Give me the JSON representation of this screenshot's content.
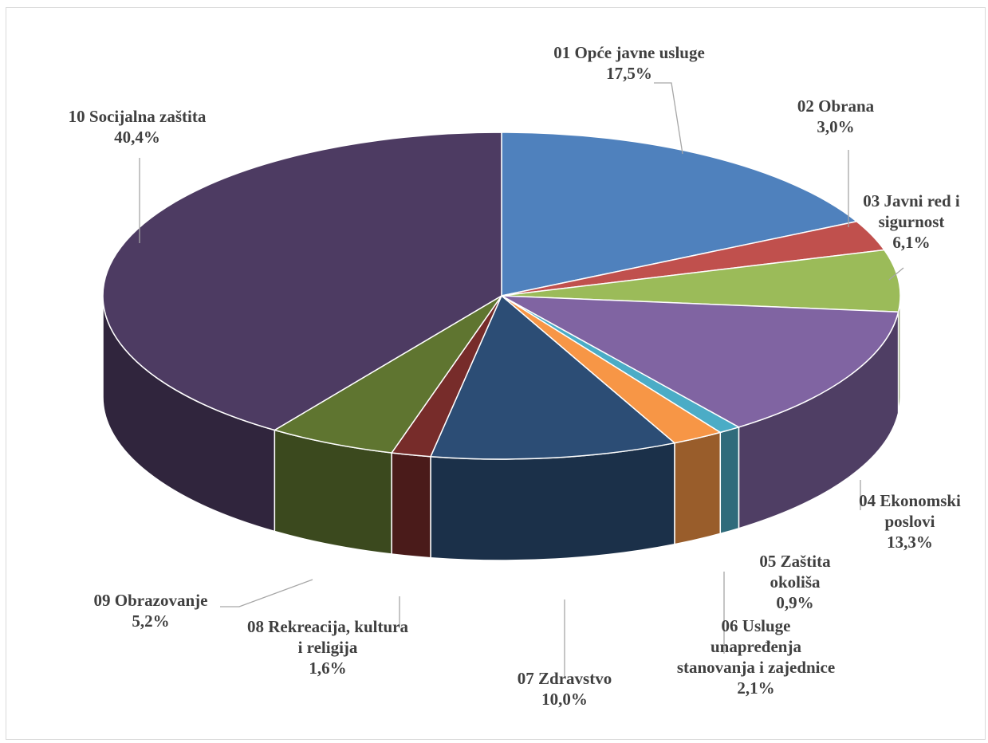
{
  "chart_data": {
    "type": "pie",
    "title": "",
    "legend": "none",
    "labels_on_chart": true,
    "slices": [
      {
        "name_lines": [
          "01 Opće javne usluge"
        ],
        "label": "17,5%",
        "value": 17.5,
        "color": "#4f81bd"
      },
      {
        "name_lines": [
          "02 Obrana"
        ],
        "label": "3,0%",
        "value": 3.0,
        "color": "#c0504d"
      },
      {
        "name_lines": [
          "03 Javni red i",
          "sigurnost"
        ],
        "label": "6,1%",
        "value": 6.1,
        "color": "#9bbb59"
      },
      {
        "name_lines": [
          "04 Ekonomski",
          "poslovi"
        ],
        "label": "13,3%",
        "value": 13.3,
        "color": "#8064a2"
      },
      {
        "name_lines": [
          "05 Zaštita",
          "okoliša"
        ],
        "label": "0,9%",
        "value": 0.9,
        "color": "#4bacc6"
      },
      {
        "name_lines": [
          "06 Usluge",
          "unapređenja",
          "stanovanja i zajednice"
        ],
        "label": "2,1%",
        "value": 2.1,
        "color": "#f79646"
      },
      {
        "name_lines": [
          "07 Zdravstvo"
        ],
        "label": "10,0%",
        "value": 10.0,
        "color": "#2c4d75"
      },
      {
        "name_lines": [
          "08 Rekreacija, kultura",
          "i religija"
        ],
        "label": "1,6%",
        "value": 1.6,
        "color": "#772c2a"
      },
      {
        "name_lines": [
          "09 Obrazovanje"
        ],
        "label": "5,2%",
        "value": 5.2,
        "color": "#5f7530"
      },
      {
        "name_lines": [
          "10 Socijalna zaštita"
        ],
        "label": "40,4%",
        "value": 40.4,
        "color": "#4d3b62"
      }
    ]
  }
}
